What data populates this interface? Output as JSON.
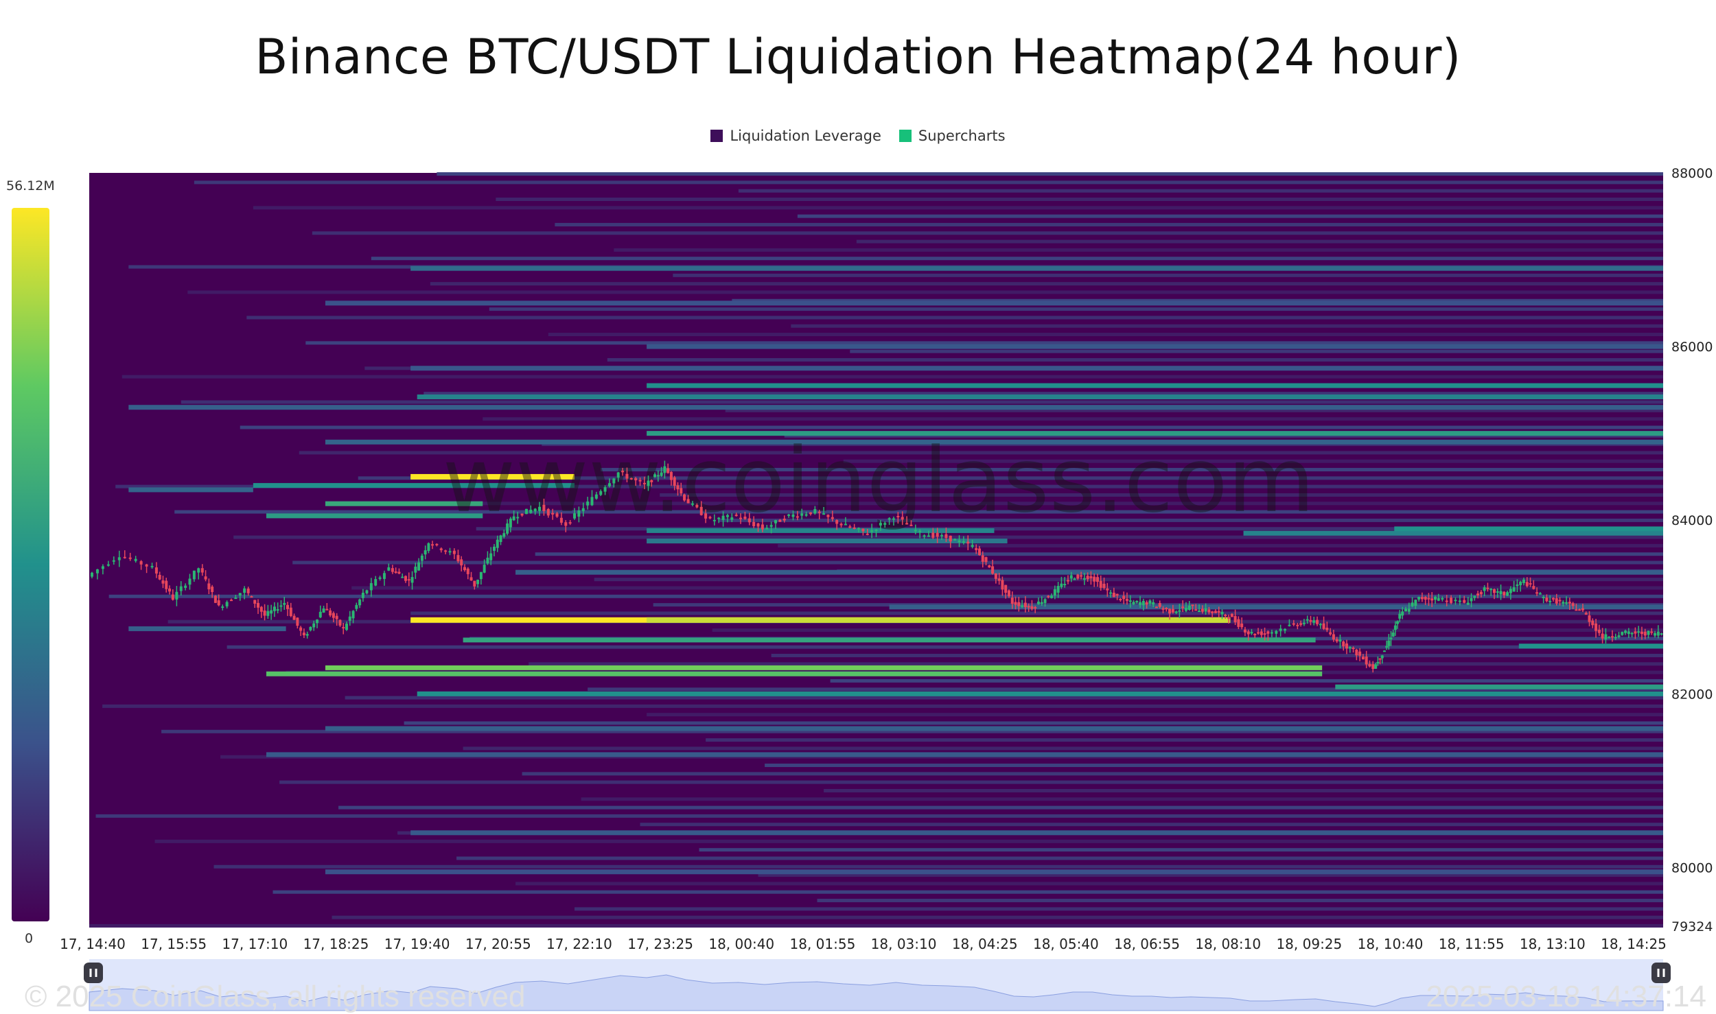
{
  "chart_data": {
    "type": "heatmap",
    "title": "Binance BTC/USDT Liquidation Heatmap(24 hour)",
    "legend": [
      {
        "label": "Liquidation Leverage",
        "color": "#3e0e5a"
      },
      {
        "label": "Supercharts",
        "color": "#17c07a"
      }
    ],
    "color_scale": {
      "max_label": "56.12M",
      "min_label": "0",
      "colors": [
        "#440154",
        "#3b528b",
        "#21918c",
        "#5ec962",
        "#fde725"
      ]
    },
    "x_ticks": [
      "17, 14:40",
      "17, 15:55",
      "17, 17:10",
      "17, 18:25",
      "17, 19:40",
      "17, 20:55",
      "17, 22:10",
      "17, 23:25",
      "18, 00:40",
      "18, 01:55",
      "18, 03:10",
      "18, 04:25",
      "18, 05:40",
      "18, 06:55",
      "18, 08:10",
      "18, 09:25",
      "18, 10:40",
      "18, 11:55",
      "18, 13:10",
      "18, 14:25"
    ],
    "y_ticks": [
      "88000",
      "86000",
      "84000",
      "82000",
      "80000",
      "79324"
    ],
    "ylim": [
      79324,
      88000
    ],
    "x_range_hours": [
      0,
      24
    ],
    "price_series": {
      "name": "BTC/USDT",
      "points": [
        [
          0.0,
          83350
        ],
        [
          0.5,
          83600
        ],
        [
          1.0,
          83450
        ],
        [
          1.3,
          83100
        ],
        [
          1.7,
          83450
        ],
        [
          2.0,
          83000
        ],
        [
          2.4,
          83200
        ],
        [
          2.7,
          82900
        ],
        [
          3.0,
          83050
        ],
        [
          3.3,
          82650
        ],
        [
          3.6,
          83000
        ],
        [
          3.9,
          82750
        ],
        [
          4.2,
          83150
        ],
        [
          4.6,
          83450
        ],
        [
          4.9,
          83300
        ],
        [
          5.2,
          83750
        ],
        [
          5.6,
          83600
        ],
        [
          5.9,
          83250
        ],
        [
          6.2,
          83700
        ],
        [
          6.5,
          84050
        ],
        [
          6.9,
          84150
        ],
        [
          7.3,
          83950
        ],
        [
          7.7,
          84250
        ],
        [
          8.1,
          84550
        ],
        [
          8.5,
          84400
        ],
        [
          8.8,
          84600
        ],
        [
          9.1,
          84250
        ],
        [
          9.5,
          84000
        ],
        [
          9.9,
          84050
        ],
        [
          10.3,
          83900
        ],
        [
          10.7,
          84050
        ],
        [
          11.1,
          84100
        ],
        [
          11.5,
          83950
        ],
        [
          11.9,
          83850
        ],
        [
          12.3,
          84050
        ],
        [
          12.7,
          83850
        ],
        [
          13.1,
          83800
        ],
        [
          13.5,
          83700
        ],
        [
          13.8,
          83400
        ],
        [
          14.1,
          83050
        ],
        [
          14.4,
          83000
        ],
        [
          14.7,
          83150
        ],
        [
          15.0,
          83350
        ],
        [
          15.3,
          83350
        ],
        [
          15.6,
          83150
        ],
        [
          15.9,
          83050
        ],
        [
          16.2,
          83050
        ],
        [
          16.5,
          82950
        ],
        [
          16.8,
          83000
        ],
        [
          17.1,
          82950
        ],
        [
          17.4,
          82900
        ],
        [
          17.7,
          82700
        ],
        [
          18.0,
          82700
        ],
        [
          18.4,
          82800
        ],
        [
          18.7,
          82850
        ],
        [
          19.0,
          82650
        ],
        [
          19.3,
          82500
        ],
        [
          19.6,
          82300
        ],
        [
          19.8,
          82550
        ],
        [
          20.0,
          82900
        ],
        [
          20.3,
          83100
        ],
        [
          20.6,
          83100
        ],
        [
          21.0,
          83050
        ],
        [
          21.3,
          83200
        ],
        [
          21.6,
          83150
        ],
        [
          21.9,
          83300
        ],
        [
          22.2,
          83100
        ],
        [
          22.5,
          83050
        ],
        [
          22.8,
          82950
        ],
        [
          23.1,
          82650
        ],
        [
          23.4,
          82700
        ],
        [
          23.7,
          82700
        ],
        [
          24.0,
          82700
        ]
      ]
    },
    "liquidation_levels": [
      {
        "price": 84500,
        "from": 4.9,
        "to": 7.4,
        "intensity": 1.0
      },
      {
        "price": 82850,
        "from": 4.9,
        "to": 17.4,
        "intensity": 1.0
      },
      {
        "price": 82850,
        "from": 8.5,
        "to": 17.4,
        "intensity": 0.92
      },
      {
        "price": 82300,
        "from": 3.6,
        "to": 18.8,
        "intensity": 0.78
      },
      {
        "price": 82230,
        "from": 2.7,
        "to": 18.8,
        "intensity": 0.72
      },
      {
        "price": 82620,
        "from": 5.7,
        "to": 18.7,
        "intensity": 0.58
      },
      {
        "price": 84190,
        "from": 3.6,
        "to": 6.0,
        "intensity": 0.6
      },
      {
        "price": 84050,
        "from": 2.7,
        "to": 6.0,
        "intensity": 0.55
      },
      {
        "price": 84400,
        "from": 2.5,
        "to": 7.4,
        "intensity": 0.5
      },
      {
        "price": 85000,
        "from": 8.5,
        "to": 24.0,
        "intensity": 0.55
      },
      {
        "price": 85550,
        "from": 8.5,
        "to": 24.0,
        "intensity": 0.5
      },
      {
        "price": 85420,
        "from": 5.0,
        "to": 24.0,
        "intensity": 0.45
      },
      {
        "price": 82000,
        "from": 5.0,
        "to": 24.0,
        "intensity": 0.5
      },
      {
        "price": 82080,
        "from": 19.0,
        "to": 24.0,
        "intensity": 0.55
      },
      {
        "price": 83880,
        "from": 8.5,
        "to": 13.8,
        "intensity": 0.45
      },
      {
        "price": 83760,
        "from": 8.5,
        "to": 14.0,
        "intensity": 0.4
      },
      {
        "price": 83850,
        "from": 17.6,
        "to": 24.0,
        "intensity": 0.45
      },
      {
        "price": 83900,
        "from": 19.9,
        "to": 24.0,
        "intensity": 0.5
      },
      {
        "price": 82550,
        "from": 21.8,
        "to": 24.0,
        "intensity": 0.5
      },
      {
        "price": 86900,
        "from": 4.9,
        "to": 24.0,
        "intensity": 0.35
      },
      {
        "price": 85300,
        "from": 0.6,
        "to": 24.0,
        "intensity": 0.3
      },
      {
        "price": 84900,
        "from": 3.6,
        "to": 24.0,
        "intensity": 0.32
      },
      {
        "price": 84350,
        "from": 0.6,
        "to": 2.5,
        "intensity": 0.32
      },
      {
        "price": 82750,
        "from": 0.6,
        "to": 3.0,
        "intensity": 0.3
      },
      {
        "price": 83400,
        "from": 6.5,
        "to": 24.0,
        "intensity": 0.3
      },
      {
        "price": 83000,
        "from": 12.2,
        "to": 24.0,
        "intensity": 0.3
      },
      {
        "price": 81600,
        "from": 3.6,
        "to": 24.0,
        "intensity": 0.3
      },
      {
        "price": 81300,
        "from": 2.7,
        "to": 24.0,
        "intensity": 0.28
      },
      {
        "price": 80400,
        "from": 4.9,
        "to": 24.0,
        "intensity": 0.28
      },
      {
        "price": 79950,
        "from": 3.6,
        "to": 24.0,
        "intensity": 0.25
      },
      {
        "price": 86500,
        "from": 3.6,
        "to": 24.0,
        "intensity": 0.25
      },
      {
        "price": 86000,
        "from": 8.5,
        "to": 24.0,
        "intensity": 0.27
      },
      {
        "price": 85750,
        "from": 4.9,
        "to": 24.0,
        "intensity": 0.27
      }
    ],
    "navigator": {
      "handle_icon": "pause-icon"
    }
  },
  "watermark": "www.coinglass.com",
  "footer": {
    "copyright": "© 2025 CoinGlass, all rights reserved",
    "timestamp": "2025-03-18 14:37:14"
  }
}
